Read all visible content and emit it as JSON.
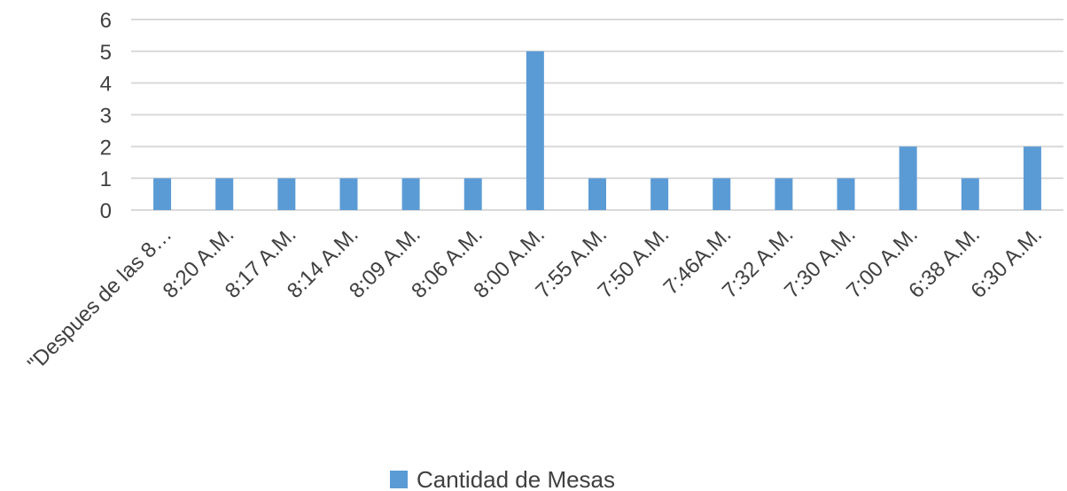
{
  "chart_data": {
    "type": "bar",
    "categories": [
      "\"Despues de las 8…",
      "8:20 A.M.",
      "8:17 A.M.",
      "8:14 A.M.",
      "8:09 A.M.",
      "8:06 A.M.",
      "8:00 A.M.",
      "7:55 A.M.",
      "7:50 A.M.",
      "7:46A.M.",
      "7:32 A.M.",
      "7:30 A.M.",
      "7:00 A.M.",
      "6:38 A.M.",
      "6:30 A.M."
    ],
    "series": [
      {
        "name": "Cantidad de Mesas",
        "values": [
          1,
          1,
          1,
          1,
          1,
          1,
          5,
          1,
          1,
          1,
          1,
          1,
          2,
          1,
          2
        ],
        "color": "#5B9BD5"
      }
    ],
    "yticks": [
      "0",
      "1",
      "2",
      "3",
      "4",
      "5",
      "6"
    ],
    "ylim": [
      0,
      6
    ],
    "title": "",
    "xlabel": "",
    "ylabel": "",
    "grid": true,
    "legend_position": "bottom",
    "colors": {
      "gridline": "#D9D9D9",
      "text": "#404040"
    }
  }
}
